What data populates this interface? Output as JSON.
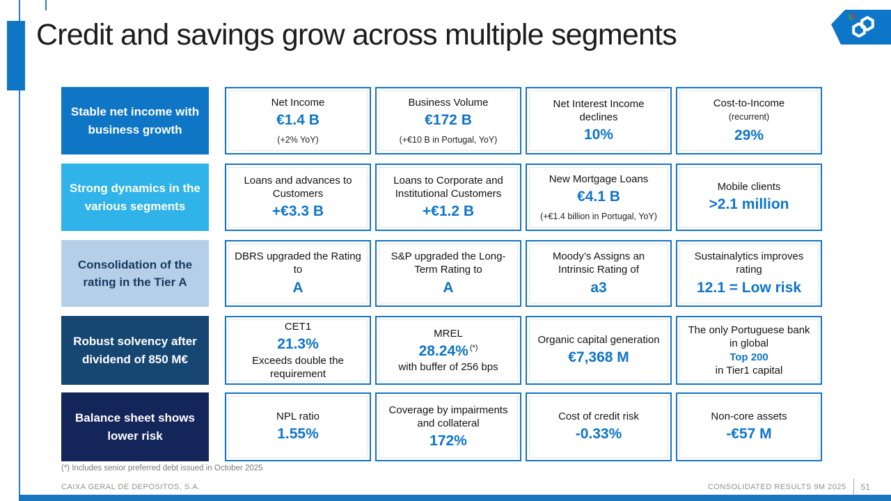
{
  "header": {
    "title": "Credit and savings grow across multiple segments",
    "logo": "cgd-logo"
  },
  "footer": {
    "footnote": "(*) Includes senior preferred debt issued in October 2025",
    "company": "CAIXA GERAL DE DEPÓSITOS, S.A.",
    "report": "CONSOLIDATED RESULTS 9M 2025",
    "page": "51"
  },
  "colors": {
    "accent_blue": "#0f76c5",
    "sky_blue": "#2fb3e8",
    "pale_blue": "#b6cfe9",
    "dark_navy": "#164672",
    "deep_navy": "#14255a",
    "value_blue": "#0e74c8",
    "card_border_blue": "#1273c5"
  },
  "rows": [
    {
      "label": "Stable net income with business growth",
      "label_bg": "#0f76c5",
      "label_fg": "#ffffff",
      "cards": [
        {
          "lines": [
            {
              "text": "Net Income",
              "style": "t"
            },
            {
              "text": "€1.4 B",
              "style": "v"
            },
            {
              "text": "(+2% YoY)",
              "style": "s"
            }
          ]
        },
        {
          "lines": [
            {
              "text": "Business Volume",
              "style": "t"
            },
            {
              "text": "€172 B",
              "style": "v"
            },
            {
              "text": "(+€10 B in Portugal, YoY)",
              "style": "s"
            }
          ]
        },
        {
          "lines": [
            {
              "text": "Net Interest Income declines",
              "style": "t"
            },
            {
              "text": "10%",
              "style": "v"
            }
          ]
        },
        {
          "lines": [
            {
              "text": "Cost-to-Income",
              "style": "t"
            },
            {
              "text": "(recurrent)",
              "style": "s"
            },
            {
              "text": "29%",
              "style": "v"
            }
          ]
        }
      ]
    },
    {
      "label": "Strong dynamics in the various segments",
      "label_bg": "#2fb3e8",
      "label_fg": "#ffffff",
      "cards": [
        {
          "lines": [
            {
              "text": "Loans and advances to Customers",
              "style": "t"
            },
            {
              "text": "+€3.3 B",
              "style": "v"
            }
          ]
        },
        {
          "lines": [
            {
              "text": "Loans to Corporate and Institutional Customers",
              "style": "t"
            },
            {
              "text": "+€1.2 B",
              "style": "v"
            }
          ]
        },
        {
          "lines": [
            {
              "text": "New Mortgage Loans",
              "style": "t"
            },
            {
              "text": "€4.1 B",
              "style": "v"
            },
            {
              "text": "(+€1.4 billion in Portugal, YoY)",
              "style": "s"
            }
          ]
        },
        {
          "lines": [
            {
              "text": "Mobile clients",
              "style": "t"
            },
            {
              "text": ">2.1 million",
              "style": "v"
            }
          ]
        }
      ]
    },
    {
      "label": "Consolidation of the rating in the Tier A",
      "label_bg": "#b6cfe9",
      "label_fg": "#17395f",
      "cards": [
        {
          "lines": [
            {
              "text": "DBRS upgraded the Rating to",
              "style": "t"
            },
            {
              "text": "A",
              "style": "v"
            }
          ]
        },
        {
          "lines": [
            {
              "text": "S&P upgraded the Long-Term Rating to",
              "style": "t"
            },
            {
              "text": "A",
              "style": "v"
            }
          ]
        },
        {
          "lines": [
            {
              "text": "Moody’s Assigns an Intrinsic Rating of",
              "style": "t"
            },
            {
              "text": "a3",
              "style": "v"
            }
          ]
        },
        {
          "lines": [
            {
              "text": "Sustainalytics improves rating",
              "style": "t"
            },
            {
              "text": "12.1 = Low risk",
              "style": "v"
            }
          ]
        }
      ]
    },
    {
      "label": "Robust solvency after dividend of 850 M€",
      "label_bg": "#164672",
      "label_fg": "#ffffff",
      "cards": [
        {
          "lines": [
            {
              "text": "CET1",
              "style": "t"
            },
            {
              "text": "21.3%",
              "style": "v"
            },
            {
              "text": "Exceeds double the requirement",
              "style": "t"
            }
          ]
        },
        {
          "lines": [
            {
              "text": "MREL",
              "style": "t"
            },
            {
              "text": "28.24%",
              "style": "v",
              "sup": "(*)"
            },
            {
              "text": "with buffer of 256 bps",
              "style": "t"
            }
          ]
        },
        {
          "lines": [
            {
              "text": "Organic capital generation",
              "style": "t"
            },
            {
              "text": "€7,368 M",
              "style": "v"
            }
          ]
        },
        {
          "lines": [
            {
              "text": "The only Portuguese bank in global",
              "style": "t"
            },
            {
              "text": "Top 200",
              "style": "vb"
            },
            {
              "text": "in Tier1 capital",
              "style": "t"
            }
          ]
        }
      ]
    },
    {
      "label": "Balance sheet shows lower risk",
      "label_bg": "#14255a",
      "label_fg": "#ffffff",
      "cards": [
        {
          "lines": [
            {
              "text": "NPL ratio",
              "style": "t"
            },
            {
              "text": "1.55%",
              "style": "v"
            }
          ]
        },
        {
          "lines": [
            {
              "text": "Coverage by impairments and collateral",
              "style": "t"
            },
            {
              "text": "172%",
              "style": "v"
            }
          ]
        },
        {
          "lines": [
            {
              "text": "Cost of credit risk",
              "style": "t"
            },
            {
              "text": "-0.33%",
              "style": "v"
            }
          ]
        },
        {
          "lines": [
            {
              "text": "Non-core assets",
              "style": "t"
            },
            {
              "text": "-€57 M",
              "style": "v"
            }
          ]
        }
      ]
    }
  ]
}
